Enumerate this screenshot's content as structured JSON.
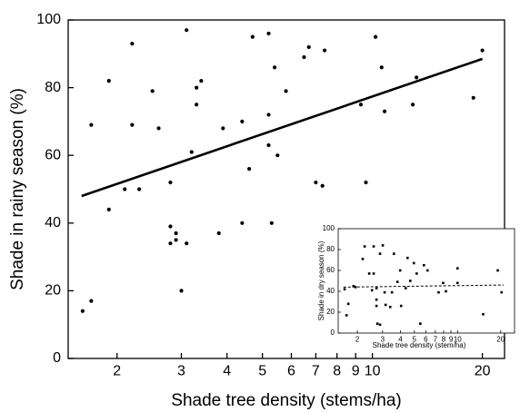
{
  "chart_data": [
    {
      "type": "scatter",
      "x_label": "Shade tree density (stems/ha)",
      "y_label": "Shade in rainy season (%)",
      "log_x": true,
      "marker": "circle",
      "color": "#000000",
      "x": [
        1.61,
        1.7,
        1.7,
        1.9,
        1.9,
        2.1,
        2.2,
        2.2,
        2.3,
        2.5,
        2.6,
        2.8,
        2.8,
        2.9,
        2.8,
        2.9,
        3.0,
        3.1,
        3.1,
        3.2,
        3.3,
        3.3,
        3.4,
        3.8,
        3.9,
        4.4,
        4.4,
        4.6,
        4.7,
        5.2,
        5.2,
        5.2,
        5.3,
        5.4,
        5.5,
        5.8,
        6.5,
        6.7,
        7.0,
        7.3,
        7.4,
        9.3,
        9.6,
        10.2,
        10.6,
        10.8,
        12.9,
        13.2,
        18.9,
        20.0
      ],
      "values": [
        14,
        17,
        69,
        82,
        44,
        50,
        93,
        69,
        50,
        79,
        68,
        52,
        39,
        37,
        34,
        35,
        20,
        34,
        97,
        61,
        80,
        75,
        82,
        37,
        68,
        70,
        40,
        56,
        95,
        96,
        72,
        63,
        40,
        86,
        60,
        79,
        89,
        92,
        52,
        51,
        91,
        75,
        52,
        95,
        86,
        73,
        75,
        83,
        77,
        91
      ],
      "trend": {
        "x": [
          1.6,
          20
        ],
        "values": [
          48,
          88.5
        ],
        "style": "solid"
      },
      "xlim": [
        1.47,
        23
      ],
      "ylim": [
        0,
        100
      ],
      "xticks": [
        2,
        3,
        4,
        5,
        6,
        7,
        8,
        9,
        10,
        20
      ],
      "yticks": [
        0,
        20,
        40,
        60,
        80,
        100
      ]
    },
    {
      "type": "scatter",
      "x_label": "Shade tree density (stem/ha)",
      "y_label": "Shade in dry season (%)",
      "log_x": true,
      "marker": "square",
      "color": "#000000",
      "x": [
        1.63,
        1.68,
        1.73,
        1.88,
        1.94,
        2.18,
        2.25,
        2.42,
        2.6,
        2.6,
        2.53,
        2.72,
        2.72,
        2.72,
        2.76,
        2.88,
        2.88,
        3.01,
        3.1,
        3.15,
        3.39,
        3.49,
        3.6,
        3.81,
        3.98,
        4.04,
        4.35,
        4.48,
        4.68,
        4.96,
        5.19,
        5.5,
        5.83,
        6.18,
        7.38,
        7.94,
        8.3,
        10.0,
        10.0,
        15.1,
        19.1,
        20.3
      ],
      "values": [
        42,
        17,
        28,
        45,
        44,
        71,
        83,
        57,
        83,
        57,
        41,
        43,
        32,
        26,
        9,
        8,
        76,
        84,
        39,
        27,
        25,
        39,
        76,
        49,
        60,
        26,
        43,
        72,
        50,
        67,
        57,
        9,
        65,
        60,
        39,
        48,
        40,
        62,
        48,
        18,
        60,
        39
      ],
      "trend": {
        "x": [
          1.6,
          21
        ],
        "values": [
          44,
          46
        ],
        "style": "dashed"
      },
      "xlim": [
        1.47,
        25
      ],
      "ylim": [
        0,
        100
      ],
      "xticks": [
        2,
        3,
        4,
        5,
        6,
        7,
        8,
        9,
        10,
        20
      ],
      "yticks": [
        0,
        20,
        40,
        60,
        80,
        100
      ]
    }
  ]
}
